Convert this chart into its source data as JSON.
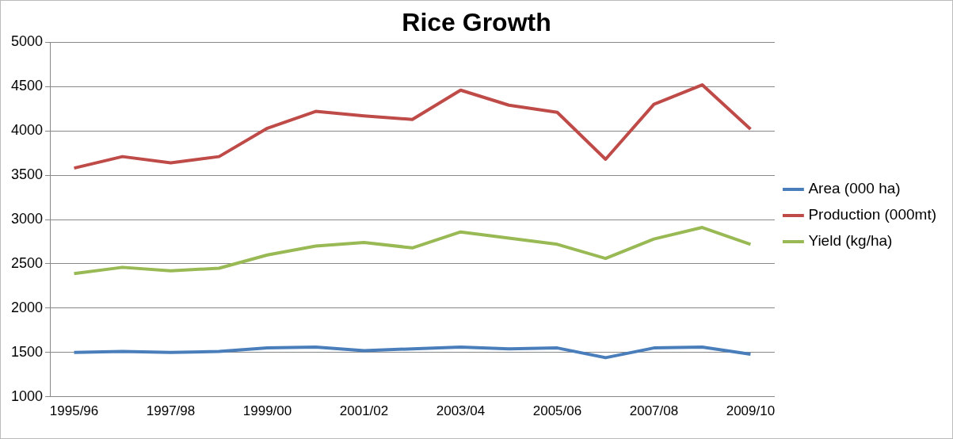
{
  "chart_data": {
    "type": "line",
    "title": "Rice Growth",
    "categories": [
      "1995/96",
      null,
      "1997/98",
      null,
      "1999/00",
      null,
      "2001/02",
      null,
      "2003/04",
      null,
      "2005/06",
      null,
      "2007/08",
      null,
      "2009/10"
    ],
    "series": [
      {
        "name": "Area (000 ha)",
        "color": "#4a7ebb",
        "values": [
          1500,
          1510,
          1500,
          1510,
          1550,
          1560,
          1520,
          1540,
          1560,
          1540,
          1550,
          1440,
          1550,
          1560,
          1480
        ]
      },
      {
        "name": "Production (000mt)",
        "color": "#be4b48",
        "values": [
          3580,
          3710,
          3640,
          3710,
          4030,
          4220,
          4170,
          4130,
          4460,
          4290,
          4210,
          3680,
          4300,
          4520,
          4020
        ]
      },
      {
        "name": "Yield (kg/ha)",
        "color": "#98b954",
        "values": [
          2390,
          2460,
          2420,
          2450,
          2600,
          2700,
          2740,
          2680,
          2860,
          2790,
          2720,
          2560,
          2780,
          2910,
          2720
        ]
      }
    ],
    "ylim": [
      1000,
      5000
    ],
    "yticks": [
      1000,
      1500,
      2000,
      2500,
      3000,
      3500,
      4000,
      4500,
      5000
    ],
    "grid": "y",
    "legend": "right",
    "marker": "none",
    "line_style": "solid"
  }
}
